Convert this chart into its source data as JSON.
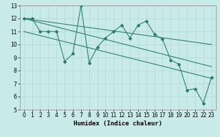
{
  "xlabel": "Humidex (Indice chaleur)",
  "ylabel": "",
  "bg_color": "#c8eae8",
  "grid_color": "#b0d8d4",
  "line_color": "#2e7d6e",
  "xlim": [
    -0.5,
    23.5
  ],
  "ylim": [
    5,
    13
  ],
  "xticks": [
    0,
    1,
    2,
    3,
    4,
    5,
    6,
    7,
    8,
    9,
    10,
    11,
    12,
    13,
    14,
    15,
    16,
    17,
    18,
    19,
    20,
    21,
    22,
    23
  ],
  "yticks": [
    5,
    6,
    7,
    8,
    9,
    10,
    11,
    12,
    13
  ],
  "curve1_x": [
    0,
    1,
    2,
    3,
    4,
    5,
    6,
    7,
    8,
    9,
    10,
    11,
    12,
    13,
    14,
    15,
    16,
    17,
    18,
    19,
    20,
    21,
    22,
    23
  ],
  "curve1_y": [
    12,
    12,
    11,
    11,
    11,
    8.7,
    9.3,
    13,
    8.6,
    9.8,
    10.5,
    11,
    11.5,
    10.5,
    11.5,
    11.8,
    10.8,
    10.4,
    8.8,
    8.5,
    6.5,
    6.6,
    5.5,
    7.5
  ],
  "trend1_x": [
    0,
    23
  ],
  "trend1_y": [
    12,
    8.3
  ],
  "trend2_x": [
    0,
    23
  ],
  "trend2_y": [
    11,
    7.4
  ],
  "trend3_x": [
    0,
    23
  ],
  "trend3_y": [
    12,
    10.0
  ]
}
